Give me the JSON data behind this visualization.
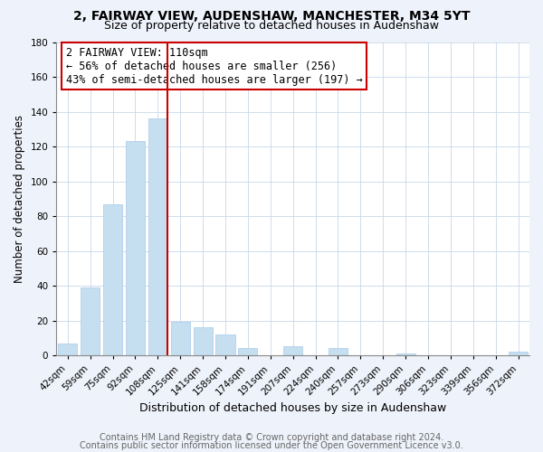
{
  "title": "2, FAIRWAY VIEW, AUDENSHAW, MANCHESTER, M34 5YT",
  "subtitle": "Size of property relative to detached houses in Audenshaw",
  "xlabel": "Distribution of detached houses by size in Audenshaw",
  "ylabel": "Number of detached properties",
  "bar_color": "#c5dff0",
  "bar_edgecolor": "#a8c8e8",
  "categories": [
    "42sqm",
    "59sqm",
    "75sqm",
    "92sqm",
    "108sqm",
    "125sqm",
    "141sqm",
    "158sqm",
    "174sqm",
    "191sqm",
    "207sqm",
    "224sqm",
    "240sqm",
    "257sqm",
    "273sqm",
    "290sqm",
    "306sqm",
    "323sqm",
    "339sqm",
    "356sqm",
    "372sqm"
  ],
  "values": [
    7,
    39,
    87,
    123,
    136,
    19,
    16,
    12,
    4,
    0,
    5,
    0,
    4,
    0,
    0,
    1,
    0,
    0,
    0,
    0,
    2
  ],
  "ylim": [
    0,
    180
  ],
  "yticks": [
    0,
    20,
    40,
    60,
    80,
    100,
    120,
    140,
    160,
    180
  ],
  "vline_color": "#cc0000",
  "annotation_line1": "2 FAIRWAY VIEW: 110sqm",
  "annotation_line2": "← 56% of detached houses are smaller (256)",
  "annotation_line3": "43% of semi-detached houses are larger (197) →",
  "footer_line1": "Contains HM Land Registry data © Crown copyright and database right 2024.",
  "footer_line2": "Contains public sector information licensed under the Open Government Licence v3.0.",
  "background_color": "#eef2fa",
  "plot_background": "#ffffff",
  "grid_color": "#c8d8ea",
  "title_fontsize": 10,
  "subtitle_fontsize": 9,
  "xlabel_fontsize": 9,
  "ylabel_fontsize": 8.5,
  "tick_fontsize": 7.5,
  "annotation_fontsize": 8.5,
  "footer_fontsize": 7
}
